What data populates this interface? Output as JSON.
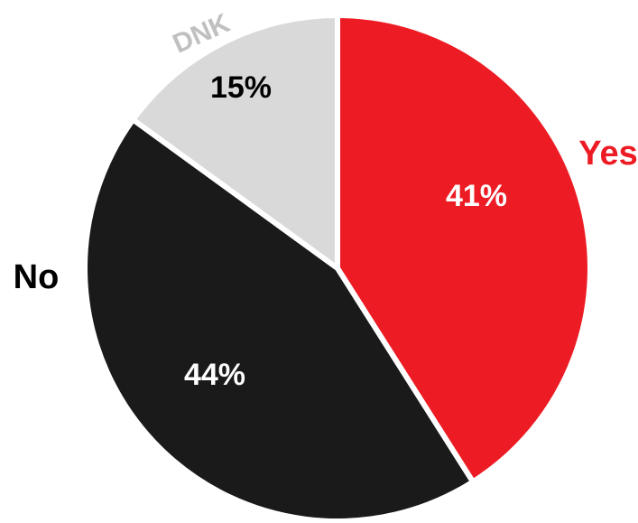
{
  "chart_data": {
    "type": "pie",
    "categories": [
      "Yes",
      "No",
      "DNK"
    ],
    "values": [
      41,
      44,
      15
    ],
    "value_labels": [
      "41%",
      "44%",
      "15%"
    ],
    "colors": [
      "#ED1C24",
      "#1A1A1A",
      "#D9D9D9"
    ],
    "category_label_colors": [
      "#ED1C24",
      "#000000",
      "#C0C0C0"
    ],
    "value_label_colors": [
      "#FFFFFF",
      "#FFFFFF",
      "#000000"
    ],
    "title": "",
    "start": "12 o'clock, clockwise",
    "legend": "none"
  }
}
